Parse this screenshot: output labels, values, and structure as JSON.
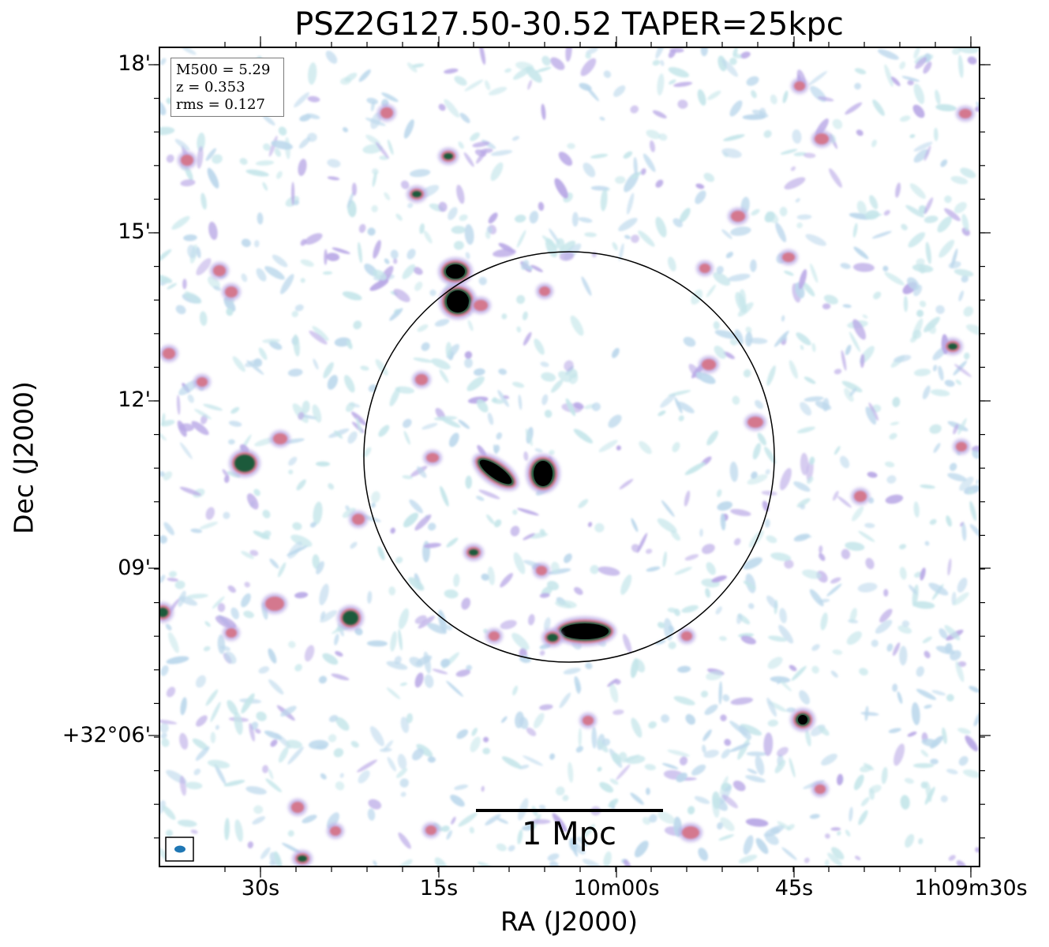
{
  "title": "PSZ2G127.50-30.52 TAPER=25kpc",
  "axes": {
    "xlabel": "RA (J2000)",
    "ylabel": "Dec (J2000)",
    "x_ticks": [
      "30s",
      "15s",
      "10m00s",
      "45s",
      "1h09m30s"
    ],
    "y_ticks": [
      "18'",
      "15'",
      "12'",
      "09'",
      "+32°06'"
    ]
  },
  "info": {
    "m500": "M500 = 5.29",
    "z": "z = 0.353",
    "rms": "rms = 0.127"
  },
  "scale_bar": {
    "label": "1 Mpc"
  },
  "colors": {
    "noise_light": "#bcd8ec",
    "noise_cyan": "#c5e6ea",
    "noise_purple": "#b9a8e6",
    "source_pink": "#d4788e",
    "source_green": "#1f5a3a",
    "source_core": "#000000",
    "beam": "#1f77b4"
  }
}
